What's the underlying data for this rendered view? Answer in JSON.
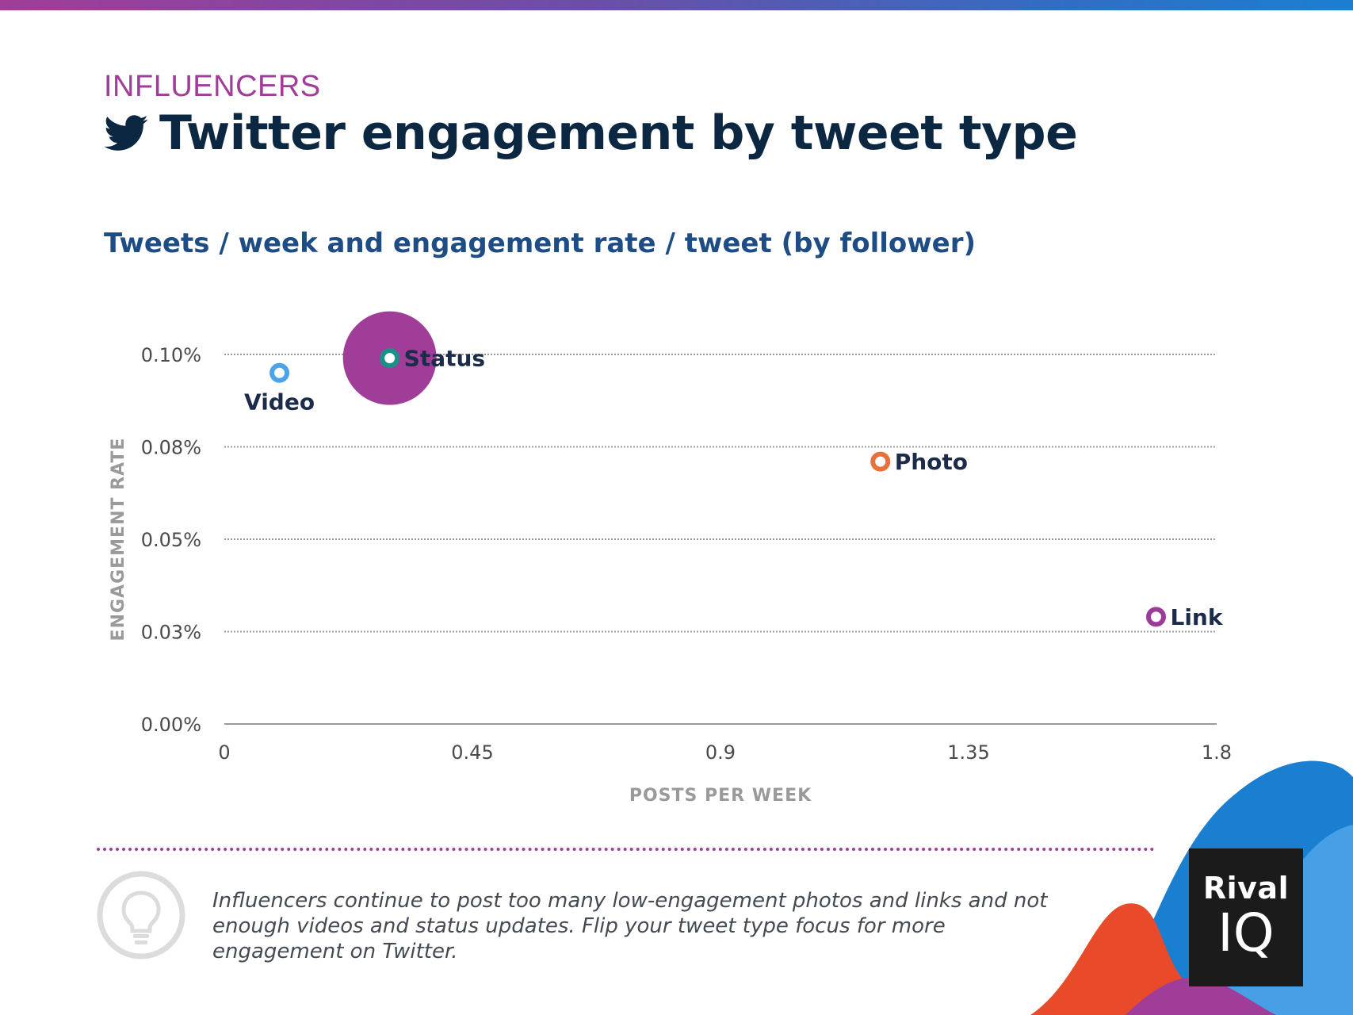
{
  "header": {
    "kicker": "INFLUENCERS",
    "title": "Twitter engagement by tweet type",
    "subtitle": "Tweets / week and engagement rate / tweet (by follower)"
  },
  "chart_data": {
    "type": "scatter",
    "title": "Tweets / week and engagement rate / tweet (by follower)",
    "xlabel": "POSTS PER WEEK",
    "ylabel": "ENGAGEMENT RATE",
    "xlim": [
      0,
      1.8
    ],
    "ylim": [
      0,
      0.1
    ],
    "x_ticks": [
      {
        "value": 0,
        "label": "0"
      },
      {
        "value": 0.45,
        "label": "0.45"
      },
      {
        "value": 0.9,
        "label": "0.9"
      },
      {
        "value": 1.35,
        "label": "1.35"
      },
      {
        "value": 1.8,
        "label": "1.8"
      }
    ],
    "y_ticks": [
      {
        "value": 0,
        "label": "0.00%"
      },
      {
        "value": 0.025,
        "label": "0.03%"
      },
      {
        "value": 0.05,
        "label": "0.05%"
      },
      {
        "value": 0.075,
        "label": "0.08%"
      },
      {
        "value": 0.1,
        "label": "0.10%"
      }
    ],
    "points": [
      {
        "name": "Video",
        "x": 0.1,
        "y": 0.095,
        "color": "#4da3e8",
        "label_position": "below"
      },
      {
        "name": "Status",
        "x": 0.3,
        "y": 0.099,
        "color": "#1a9188",
        "label_position": "right",
        "bubble_color": "#a03d98"
      },
      {
        "name": "Photo",
        "x": 1.19,
        "y": 0.071,
        "color": "#e8703a",
        "label_position": "right"
      },
      {
        "name": "Link",
        "x": 1.69,
        "y": 0.029,
        "color": "#9b3d98",
        "label_position": "right"
      }
    ]
  },
  "insight": {
    "text": "Influencers continue to post too many low-engagement photos and links and not enough videos and status updates. Flip your tweet type focus for more engagement on Twitter."
  },
  "brand": {
    "logo_top": "Rival",
    "logo_bottom": "IQ"
  },
  "icons": {
    "title_icon": "twitter-bird-icon",
    "insight_icon": "lightbulb-icon"
  }
}
